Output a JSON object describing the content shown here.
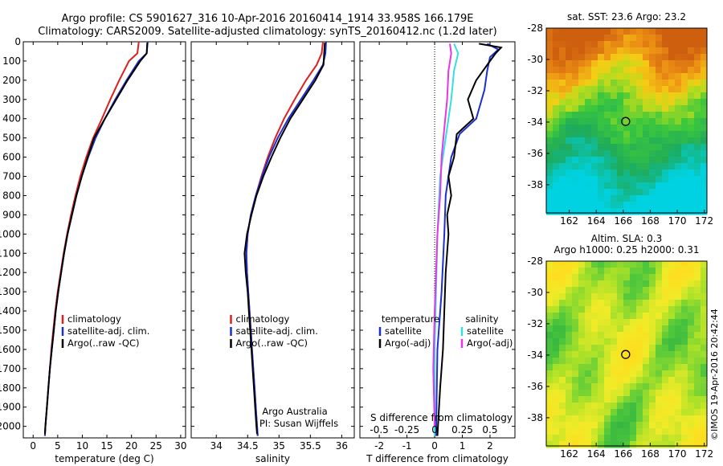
{
  "header": {
    "line1": "Argo profile: CS 5901627_316 10-Apr-2016 20160414_1914 33.958S 166.179E",
    "line2": "Climatology: CARS2009. Satellite-adjusted climatology: synTS_20160412.nc (1.2d later)"
  },
  "colors": {
    "clim": "#dd1f1f",
    "sat": "#1d2ecf",
    "argo": "#000000",
    "sat_s": "#33dfe6",
    "argo_s": "#e535e5"
  },
  "chart_data": [
    {
      "type": "line",
      "xlabel": "temperature (deg C)",
      "ylabel": "",
      "xlim": [
        -2,
        31
      ],
      "ylim": [
        2060,
        0
      ],
      "xticks": [
        0,
        5,
        10,
        15,
        20,
        25,
        30
      ],
      "yticks": [
        0,
        100,
        200,
        300,
        400,
        500,
        600,
        700,
        800,
        900,
        1000,
        1100,
        1200,
        1300,
        1400,
        1500,
        1600,
        1700,
        1800,
        1900,
        2000
      ],
      "legend": [
        "climatology",
        "satellite-adj. clim.",
        "Argo(..raw -QC)"
      ],
      "legend_position": "lower-center",
      "series": [
        {
          "name": "climatology",
          "color": "clim",
          "points": [
            [
              21.5,
              0
            ],
            [
              21.2,
              60
            ],
            [
              19.5,
              100
            ],
            [
              17.5,
              200
            ],
            [
              15.7,
              300
            ],
            [
              14.0,
              400
            ],
            [
              12.2,
              500
            ],
            [
              10.8,
              600
            ],
            [
              9.6,
              700
            ],
            [
              8.6,
              800
            ],
            [
              7.7,
              900
            ],
            [
              6.9,
              1000
            ],
            [
              6.2,
              1100
            ],
            [
              5.6,
              1200
            ],
            [
              5.0,
              1300
            ],
            [
              4.5,
              1400
            ],
            [
              4.1,
              1500
            ],
            [
              3.7,
              1600
            ],
            [
              3.4,
              1700
            ],
            [
              3.1,
              1800
            ],
            [
              2.8,
              1900
            ],
            [
              2.5,
              2000
            ],
            [
              2.4,
              2050
            ]
          ]
        },
        {
          "name": "satellite-adj. clim.",
          "color": "sat",
          "points": [
            [
              23.3,
              0
            ],
            [
              23.1,
              60
            ],
            [
              21.5,
              100
            ],
            [
              19.0,
              200
            ],
            [
              16.7,
              300
            ],
            [
              14.6,
              400
            ],
            [
              12.7,
              500
            ],
            [
              11.2,
              600
            ],
            [
              9.9,
              700
            ],
            [
              8.8,
              800
            ],
            [
              7.9,
              900
            ],
            [
              7.0,
              1000
            ],
            [
              6.3,
              1100
            ],
            [
              5.7,
              1200
            ],
            [
              5.1,
              1300
            ],
            [
              4.6,
              1400
            ],
            [
              4.2,
              1500
            ],
            [
              3.8,
              1600
            ],
            [
              3.4,
              1700
            ],
            [
              3.1,
              1800
            ],
            [
              2.8,
              1900
            ],
            [
              2.5,
              2000
            ],
            [
              2.4,
              2050
            ]
          ]
        },
        {
          "name": "Argo(..raw -QC)",
          "color": "argo",
          "points": [
            [
              23.2,
              5
            ],
            [
              23.1,
              60
            ],
            [
              21.8,
              100
            ],
            [
              19.2,
              200
            ],
            [
              16.9,
              300
            ],
            [
              14.6,
              400
            ],
            [
              12.4,
              500
            ],
            [
              11.1,
              600
            ],
            [
              9.9,
              700
            ],
            [
              8.8,
              800
            ],
            [
              7.9,
              900
            ],
            [
              7.0,
              1000
            ],
            [
              6.3,
              1100
            ],
            [
              5.7,
              1200
            ],
            [
              5.1,
              1300
            ],
            [
              4.6,
              1400
            ],
            [
              4.2,
              1500
            ],
            [
              3.8,
              1600
            ],
            [
              3.4,
              1700
            ],
            [
              3.1,
              1800
            ],
            [
              2.8,
              1900
            ],
            [
              2.5,
              2000
            ],
            [
              2.4,
              2040
            ]
          ]
        }
      ]
    },
    {
      "type": "line",
      "xlabel": "salinity",
      "xlim": [
        33.6,
        36.2
      ],
      "ylim": [
        2060,
        0
      ],
      "xticks": [
        34,
        34.5,
        35,
        35.5,
        36
      ],
      "legend": [
        "climatology",
        "satellite-adj. clim.",
        "Argo(..raw -QC)"
      ],
      "legend_position": "lower-center",
      "annotations": [
        "Argo Australia",
        "PI: Susan Wijffels"
      ],
      "series": [
        {
          "name": "climatology",
          "color": "clim",
          "points": [
            [
              35.7,
              0
            ],
            [
              35.68,
              60
            ],
            [
              35.6,
              120
            ],
            [
              35.43,
              200
            ],
            [
              35.25,
              300
            ],
            [
              35.08,
              400
            ],
            [
              34.94,
              500
            ],
            [
              34.82,
              600
            ],
            [
              34.72,
              700
            ],
            [
              34.63,
              800
            ],
            [
              34.55,
              900
            ],
            [
              34.5,
              1000
            ],
            [
              34.48,
              1100
            ],
            [
              34.49,
              1200
            ],
            [
              34.51,
              1300
            ],
            [
              34.53,
              1400
            ],
            [
              34.55,
              1500
            ],
            [
              34.57,
              1600
            ],
            [
              34.59,
              1700
            ],
            [
              34.61,
              1800
            ],
            [
              34.63,
              1900
            ],
            [
              34.65,
              2000
            ],
            [
              34.66,
              2050
            ]
          ]
        },
        {
          "name": "satellite-adj. clim.",
          "color": "sat",
          "points": [
            [
              35.75,
              0
            ],
            [
              35.74,
              60
            ],
            [
              35.7,
              120
            ],
            [
              35.55,
              200
            ],
            [
              35.35,
              300
            ],
            [
              35.15,
              400
            ],
            [
              34.98,
              500
            ],
            [
              34.84,
              600
            ],
            [
              34.73,
              700
            ],
            [
              34.63,
              800
            ],
            [
              34.55,
              900
            ],
            [
              34.5,
              1000
            ],
            [
              34.48,
              1100
            ],
            [
              34.49,
              1200
            ],
            [
              34.51,
              1300
            ],
            [
              34.53,
              1400
            ],
            [
              34.55,
              1500
            ],
            [
              34.57,
              1600
            ],
            [
              34.59,
              1700
            ],
            [
              34.61,
              1800
            ],
            [
              34.63,
              1900
            ],
            [
              34.65,
              2000
            ],
            [
              34.66,
              2050
            ]
          ]
        },
        {
          "name": "Argo(..raw -QC)",
          "color": "argo",
          "points": [
            [
              35.73,
              5
            ],
            [
              35.72,
              60
            ],
            [
              35.71,
              120
            ],
            [
              35.58,
              200
            ],
            [
              35.38,
              300
            ],
            [
              35.18,
              400
            ],
            [
              35.02,
              500
            ],
            [
              34.88,
              600
            ],
            [
              34.75,
              700
            ],
            [
              34.64,
              800
            ],
            [
              34.56,
              900
            ],
            [
              34.49,
              1000
            ],
            [
              34.45,
              1100
            ],
            [
              34.47,
              1200
            ],
            [
              34.5,
              1300
            ],
            [
              34.52,
              1400
            ],
            [
              34.54,
              1500
            ],
            [
              34.56,
              1600
            ],
            [
              34.58,
              1700
            ],
            [
              34.6,
              1800
            ],
            [
              34.62,
              1900
            ],
            [
              34.64,
              2000
            ],
            [
              34.65,
              2040
            ]
          ]
        }
      ]
    },
    {
      "type": "line",
      "xlabel": "T difference from climatology",
      "xlabel_top": "S difference from climatology",
      "xlim": [
        -2.7,
        2.9
      ],
      "ylim": [
        2060,
        0
      ],
      "xticks": [
        -2,
        -1,
        0,
        1,
        2
      ],
      "xticks_secondary": [
        -0.5,
        -0.25,
        0,
        0.25,
        0.5
      ],
      "legend_left_title": "temperature",
      "legend_right_title": "salinity",
      "legend": [
        "satellite",
        "Argo(-adj)",
        "satellite",
        "Argo(-adj)"
      ],
      "series": [
        {
          "name": "temperature satellite",
          "color": "sat",
          "points": [
            [
              1.9,
              10
            ],
            [
              2.3,
              40
            ],
            [
              2.0,
              80
            ],
            [
              1.9,
              150
            ],
            [
              1.8,
              250
            ],
            [
              1.5,
              400
            ],
            [
              0.9,
              480
            ],
            [
              0.6,
              600
            ],
            [
              0.4,
              800
            ],
            [
              0.35,
              1000
            ],
            [
              0.25,
              1300
            ],
            [
              0.1,
              1600
            ],
            [
              0.05,
              2050
            ]
          ]
        },
        {
          "name": "temperature Argo(-adj)",
          "color": "argo",
          "points": [
            [
              1.6,
              10
            ],
            [
              2.4,
              30
            ],
            [
              2.2,
              60
            ],
            [
              2.0,
              100
            ],
            [
              1.5,
              200
            ],
            [
              1.2,
              300
            ],
            [
              1.4,
              400
            ],
            [
              0.8,
              480
            ],
            [
              0.7,
              600
            ],
            [
              0.5,
              700
            ],
            [
              0.6,
              800
            ],
            [
              0.45,
              900
            ],
            [
              0.5,
              1000
            ],
            [
              0.4,
              1200
            ],
            [
              0.35,
              1400
            ],
            [
              0.3,
              1600
            ],
            [
              0.2,
              1800
            ],
            [
              0.1,
              2050
            ]
          ]
        },
        {
          "name": "salinity satellite",
          "color": "sat_s",
          "points": [
            [
              0.7,
              10
            ],
            [
              0.85,
              60
            ],
            [
              0.7,
              150
            ],
            [
              0.6,
              300
            ],
            [
              0.4,
              500
            ],
            [
              0.2,
              700
            ],
            [
              0.1,
              1000
            ],
            [
              0.05,
              1300
            ],
            [
              0.0,
              1600
            ],
            [
              0.0,
              2050
            ]
          ]
        },
        {
          "name": "salinity Argo(-adj)",
          "color": "argo_s",
          "points": [
            [
              0.55,
              10
            ],
            [
              0.6,
              60
            ],
            [
              0.5,
              150
            ],
            [
              0.45,
              300
            ],
            [
              0.35,
              450
            ],
            [
              0.25,
              600
            ],
            [
              0.2,
              800
            ],
            [
              0.1,
              1000
            ],
            [
              0.05,
              1200
            ],
            [
              0.0,
              1400
            ],
            [
              -0.05,
              1700
            ],
            [
              0.0,
              2000
            ]
          ]
        }
      ]
    },
    {
      "type": "heatmap",
      "title": "sat. SST: 23.6  Argo: 23.2",
      "xlim": [
        160.3,
        172.2
      ],
      "ylim": [
        -39.8,
        -28
      ],
      "xticks": [
        162,
        164,
        166,
        168,
        170,
        172
      ],
      "yticks": [
        -28,
        -30,
        -32,
        -34,
        -36,
        -38
      ],
      "marker": {
        "lon": 166.18,
        "lat": -33.96
      }
    },
    {
      "type": "heatmap",
      "title": "Altim. SLA: 0.3",
      "subtitle": "Argo h1000: 0.25  h2000: 0.31",
      "xlim": [
        160.3,
        172.2
      ],
      "ylim": [
        -39.8,
        -28
      ],
      "xticks": [
        162,
        164,
        166,
        168,
        170,
        172
      ],
      "yticks": [
        -28,
        -30,
        -32,
        -34,
        -36,
        -38
      ],
      "marker": {
        "lon": 166.18,
        "lat": -33.96
      }
    }
  ],
  "credit": "©IMOS 19-Apr-2016 20:42:44"
}
